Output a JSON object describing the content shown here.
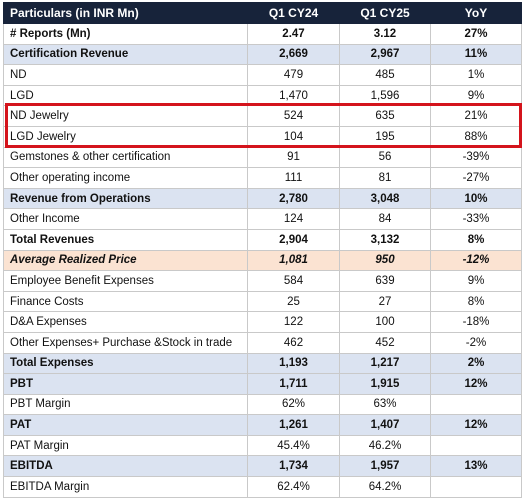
{
  "table": {
    "headers": [
      "Particulars (in INR Mn)",
      "Q1 CY24",
      "Q1 CY25",
      "YoY"
    ],
    "rows": [
      {
        "label": "# Reports (Mn)",
        "q1cy24": "2.47",
        "q1cy25": "3.12",
        "yoy": "27%",
        "style": "bold"
      },
      {
        "label": "Certification Revenue",
        "q1cy24": "2,669",
        "q1cy25": "2,967",
        "yoy": "11%",
        "style": "blue"
      },
      {
        "label": "ND",
        "q1cy24": "479",
        "q1cy25": "485",
        "yoy": "1%",
        "style": "plain"
      },
      {
        "label": "LGD",
        "q1cy24": "1,470",
        "q1cy25": "1,596",
        "yoy": "9%",
        "style": "plain"
      },
      {
        "label": "ND Jewelry",
        "q1cy24": "524",
        "q1cy25": "635",
        "yoy": "21%",
        "style": "plain"
      },
      {
        "label": "LGD Jewelry",
        "q1cy24": "104",
        "q1cy25": "195",
        "yoy": "88%",
        "style": "plain"
      },
      {
        "label": "Gemstones & other certification",
        "q1cy24": "91",
        "q1cy25": "56",
        "yoy": "-39%",
        "style": "plain"
      },
      {
        "label": "Other operating income",
        "q1cy24": "111",
        "q1cy25": "81",
        "yoy": "-27%",
        "style": "plain"
      },
      {
        "label": "Revenue from Operations",
        "q1cy24": "2,780",
        "q1cy25": "3,048",
        "yoy": "10%",
        "style": "blue"
      },
      {
        "label": "Other Income",
        "q1cy24": "124",
        "q1cy25": "84",
        "yoy": "-33%",
        "style": "plain"
      },
      {
        "label": "Total Revenues",
        "q1cy24": "2,904",
        "q1cy25": "3,132",
        "yoy": "8%",
        "style": "bold"
      },
      {
        "label": "Average Realized Price",
        "q1cy24": "1,081",
        "q1cy25": "950",
        "yoy": "-12%",
        "style": "peach"
      },
      {
        "label": "Employee Benefit Expenses",
        "q1cy24": "584",
        "q1cy25": "639",
        "yoy": "9%",
        "style": "plain"
      },
      {
        "label": "Finance Costs",
        "q1cy24": "25",
        "q1cy25": "27",
        "yoy": "8%",
        "style": "plain"
      },
      {
        "label": "D&A Expenses",
        "q1cy24": "122",
        "q1cy25": "100",
        "yoy": "-18%",
        "style": "plain"
      },
      {
        "label": "Other Expenses+ Purchase &Stock in trade",
        "q1cy24": "462",
        "q1cy25": "452",
        "yoy": "-2%",
        "style": "plain"
      },
      {
        "label": "Total Expenses",
        "q1cy24": "1,193",
        "q1cy25": "1,217",
        "yoy": "2%",
        "style": "blue"
      },
      {
        "label": "PBT",
        "q1cy24": "1,711",
        "q1cy25": "1,915",
        "yoy": "12%",
        "style": "blue"
      },
      {
        "label": "PBT Margin",
        "q1cy24": "62%",
        "q1cy25": "63%",
        "yoy": "",
        "style": "plain"
      },
      {
        "label": "PAT",
        "q1cy24": "1,261",
        "q1cy25": "1,407",
        "yoy": "12%",
        "style": "blue"
      },
      {
        "label": "PAT Margin",
        "q1cy24": "45.4%",
        "q1cy25": "46.2%",
        "yoy": "",
        "style": "plain"
      },
      {
        "label": "EBITDA",
        "q1cy24": "1,734",
        "q1cy25": "1,957",
        "yoy": "13%",
        "style": "blue"
      },
      {
        "label": "EBITDA Margin",
        "q1cy24": "62.4%",
        "q1cy25": "64.2%",
        "yoy": "",
        "style": "plain"
      }
    ]
  },
  "colors": {
    "header_bg": "#17233a",
    "subtotal_bg": "#dbe3f1",
    "highlight_row_bg": "#fbe3d2",
    "highlight_box": "#d4141c"
  }
}
